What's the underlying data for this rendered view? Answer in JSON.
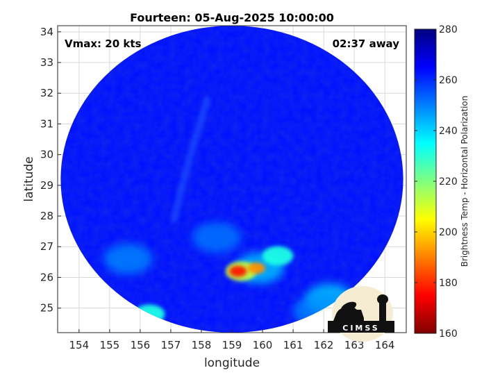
{
  "chart_data": {
    "type": "heatmap",
    "title": "Fourteen: 05-Aug-2025 10:00:00",
    "xlabel": "longitude",
    "ylabel": "latitude",
    "xlim": [
      153.3,
      164.7
    ],
    "ylim": [
      24.2,
      34.2
    ],
    "x_ticks": [
      154,
      155,
      156,
      157,
      158,
      159,
      160,
      161,
      162,
      163,
      164
    ],
    "y_ticks": [
      25,
      26,
      27,
      28,
      29,
      30,
      31,
      32,
      33,
      34
    ],
    "grid": true,
    "annotations": {
      "top_left": "Vmax: 20 kts",
      "top_right": "02:37 away"
    },
    "colorbar": {
      "label": "Brightness Temp - Horizontal Polarization",
      "range": [
        160,
        280
      ],
      "ticks": [
        160,
        180,
        200,
        220,
        240,
        260,
        280
      ],
      "colormap": "jet"
    },
    "swath": {
      "center_lon": 159.0,
      "center_lat": 29.2,
      "radius_lon": 5.6,
      "radius_lat": 5.0,
      "background_value": 263
    },
    "features": [
      {
        "lon": 159.9,
        "lat": 26.3,
        "value": 240
      },
      {
        "lon": 160.5,
        "lat": 26.7,
        "value": 232
      },
      {
        "lon": 159.3,
        "lat": 26.2,
        "value": 212
      },
      {
        "lon": 159.2,
        "lat": 26.2,
        "value": 178
      },
      {
        "lon": 159.8,
        "lat": 26.3,
        "value": 192
      },
      {
        "lon": 162.2,
        "lat": 25.3,
        "value": 240
      },
      {
        "lon": 156.3,
        "lat": 24.8,
        "value": 232
      },
      {
        "lon": 158.5,
        "lat": 27.3,
        "value": 250
      },
      {
        "lon": 155.6,
        "lat": 26.6,
        "value": 248
      },
      {
        "lon": 161.8,
        "lat": 24.9,
        "value": 248
      }
    ]
  },
  "logo": {
    "text": "CIMSS"
  }
}
